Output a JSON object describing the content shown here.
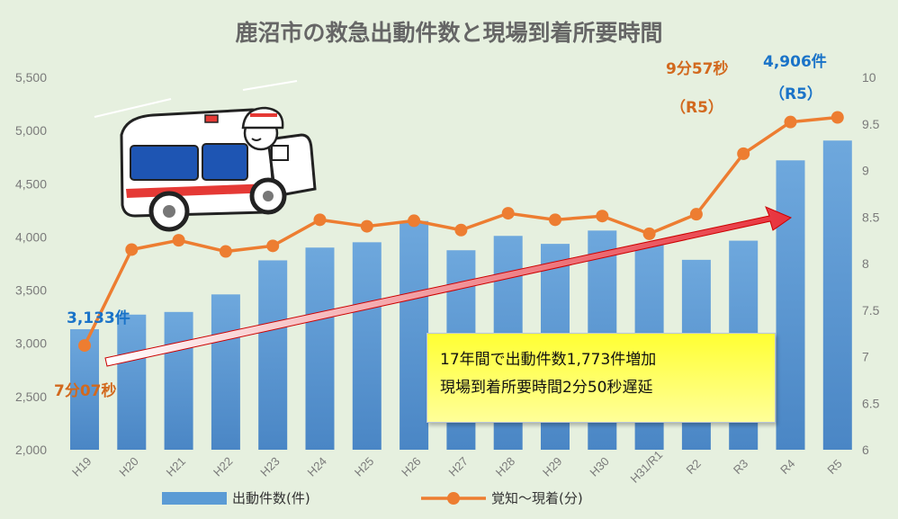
{
  "chart_data": {
    "type": "bar+line",
    "title": "鹿沼市の救急出動件数と現場到着所要時間",
    "categories": [
      "H19",
      "H20",
      "H21",
      "H22",
      "H23",
      "H24",
      "H25",
      "H26",
      "H27",
      "H28",
      "H29",
      "H30",
      "H31/R1",
      "R2",
      "R3",
      "R4",
      "R5"
    ],
    "series": [
      {
        "name": "出動件数(件)",
        "type": "bar",
        "axis": "left",
        "color": "#5b9bd5",
        "values": [
          3133,
          3270,
          3295,
          3460,
          3780,
          3900,
          3950,
          4150,
          3875,
          4010,
          3935,
          4060,
          3930,
          3785,
          3965,
          4720,
          4906
        ]
      },
      {
        "name": "覚知～現着(分)",
        "type": "line",
        "axis": "right",
        "color": "#ed7d31",
        "values": [
          7.12,
          8.15,
          8.25,
          8.13,
          8.19,
          8.47,
          8.4,
          8.46,
          8.36,
          8.54,
          8.47,
          8.51,
          8.32,
          8.53,
          9.18,
          9.52,
          9.57
        ]
      }
    ],
    "y_left": {
      "min": 2000,
      "max": 5500,
      "ticks": [
        "2,000",
        "2,500",
        "3,000",
        "3,500",
        "4,000",
        "4,500",
        "5,000",
        "5,500"
      ]
    },
    "y_right": {
      "min": 6,
      "max": 10,
      "ticks": [
        "6",
        "6.5",
        "7",
        "7.5",
        "8",
        "8.5",
        "9",
        "9.5",
        "10"
      ]
    },
    "annotations": {
      "start_count": "3,133件",
      "end_count": "4,906件",
      "end_count_sub": "（R5）",
      "start_time": "7分07秒",
      "end_time": "9分57秒",
      "end_time_sub": "（R5）"
    },
    "callout": {
      "line1": "17年間で出動件数1,773件増加",
      "line2": "現場到着所要時間2分50秒遅延"
    },
    "legend_placement": "bottom",
    "grid": false
  },
  "colors": {
    "background": "#e6f0df",
    "bar": "#5b9bd5",
    "line": "#ed7d31",
    "arrow": "#e8323c",
    "callout": "#ffff33"
  },
  "icons": {
    "illustration": "ambulance-icon"
  }
}
